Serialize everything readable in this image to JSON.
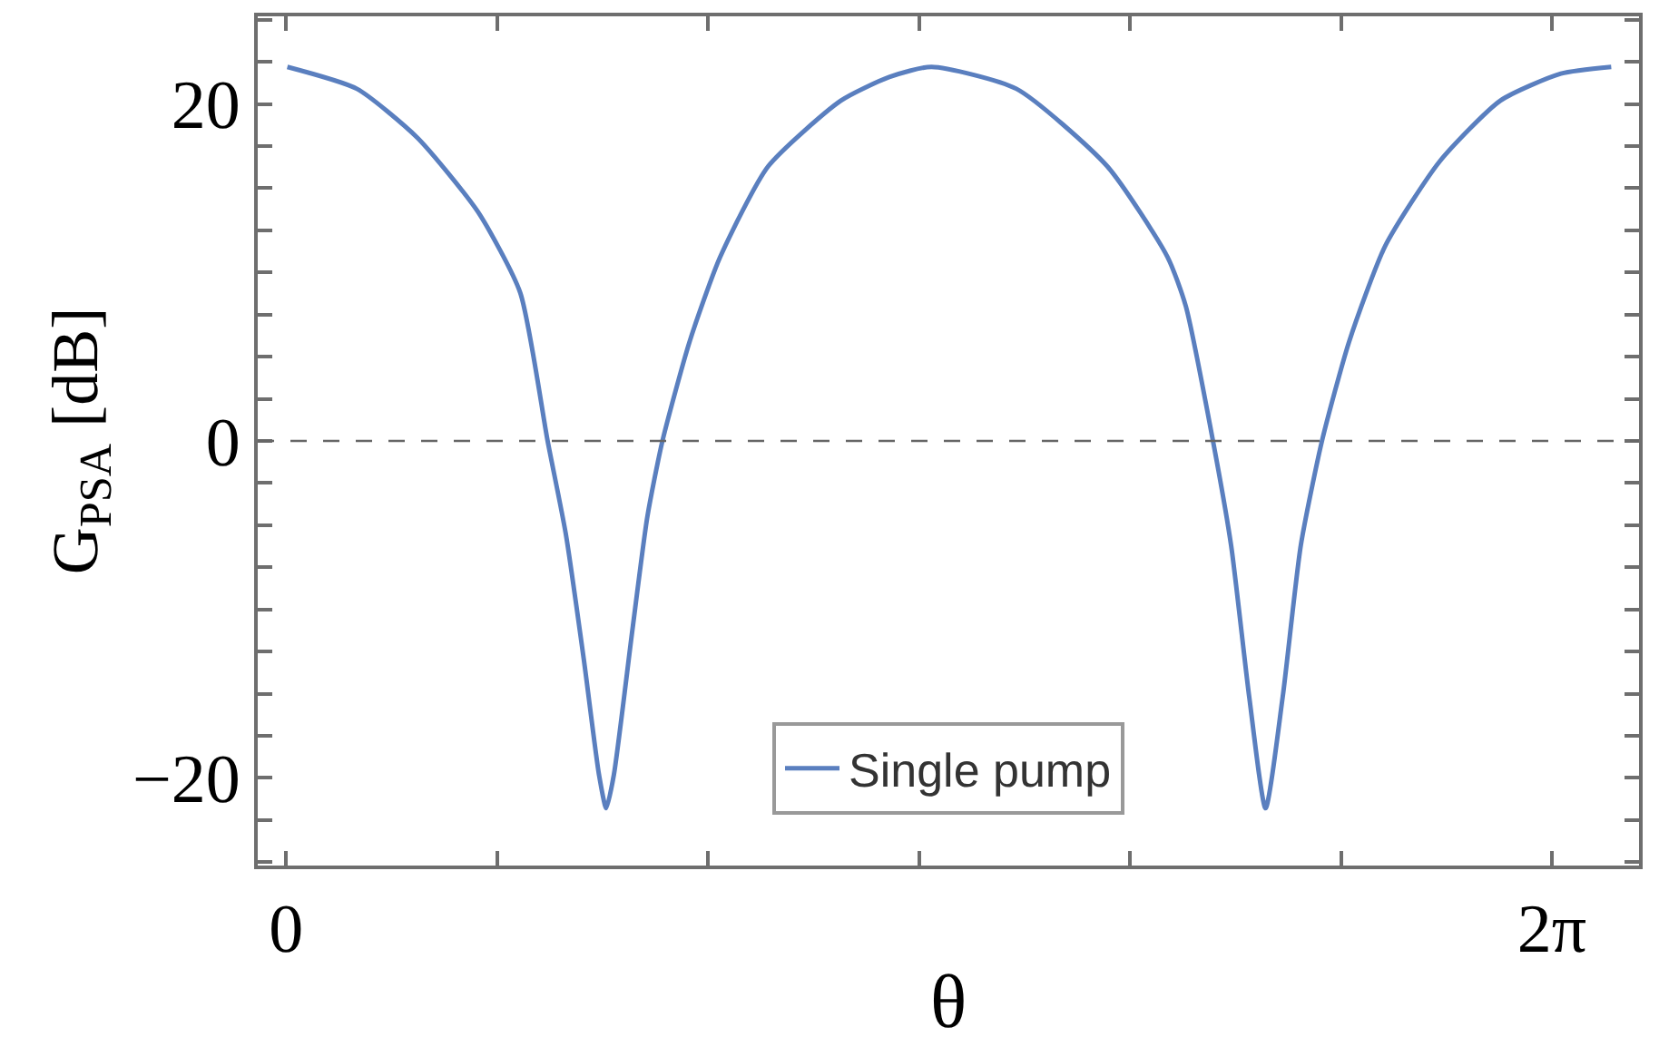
{
  "chart_data": {
    "type": "line",
    "xlabel": "θ",
    "ylabel": "G$_{PSA}$ [dB]",
    "x": [
      0.006,
      0.351,
      0.651,
      0.952,
      1.162,
      1.298,
      1.388,
      1.478,
      1.553,
      1.589,
      1.627,
      1.718,
      1.793,
      1.868,
      2.003,
      2.154,
      2.393,
      2.754,
      2.994,
      3.204,
      3.625,
      4.076,
      4.376,
      4.466,
      4.601,
      4.691,
      4.781,
      4.862,
      4.947,
      5.037,
      5.142,
      5.277,
      5.457,
      5.727,
      6.028,
      6.328,
      6.578
    ],
    "series": [
      {
        "name": "Single pump",
        "color": "#5a7fbf",
        "values": [
          22.2,
          20.9,
          18.0,
          13.6,
          8.8,
          0.0,
          -5.5,
          -13.0,
          -19.8,
          -21.8,
          -19.8,
          -11.3,
          -4.5,
          0.0,
          5.9,
          10.9,
          16.3,
          20.2,
          21.6,
          22.2,
          20.9,
          16.3,
          10.9,
          8.0,
          0.0,
          -6.2,
          -15.2,
          -21.8,
          -15.2,
          -6.2,
          0.0,
          5.9,
          11.6,
          16.6,
          20.2,
          21.8,
          22.2
        ]
      }
    ],
    "xlim": [
      -0.141,
      6.716
    ],
    "xticks": [
      {
        "value": 0,
        "label": "0"
      },
      {
        "value": 1.047,
        "label": null
      },
      {
        "value": 2.094,
        "label": null
      },
      {
        "value": 3.142,
        "label": null
      },
      {
        "value": 4.189,
        "label": null
      },
      {
        "value": 5.236,
        "label": null
      },
      {
        "value": 6.283,
        "label": "2π"
      }
    ],
    "ylim": [
      -25.2,
      25.2
    ],
    "yticks": [
      {
        "value": -25,
        "label": null
      },
      {
        "value": -22.5,
        "label": null
      },
      -20,
      {
        "value": -17.5,
        "label": null
      },
      {
        "value": -15,
        "label": null
      },
      {
        "value": -12.5,
        "label": null
      },
      {
        "value": -10,
        "label": null
      },
      {
        "value": -7.5,
        "label": null
      },
      {
        "value": -5,
        "label": null
      },
      {
        "value": -2.5,
        "label": null
      },
      0,
      {
        "value": 2.5,
        "label": null
      },
      {
        "value": 5,
        "label": null
      },
      {
        "value": 7.5,
        "label": null
      },
      {
        "value": 10,
        "label": null
      },
      {
        "value": 12.5,
        "label": null
      },
      {
        "value": 15,
        "label": null
      },
      {
        "value": 17.5,
        "label": null
      },
      20,
      {
        "value": 22.5,
        "label": null
      },
      {
        "value": 25,
        "label": null
      }
    ],
    "ref_lines": [
      {
        "axis": "y",
        "value": 0,
        "label": null,
        "color": "#666666",
        "line_style": "dashed"
      }
    ],
    "legend": "bottom",
    "grid": false,
    "marker": "none",
    "line_style": "solid"
  }
}
